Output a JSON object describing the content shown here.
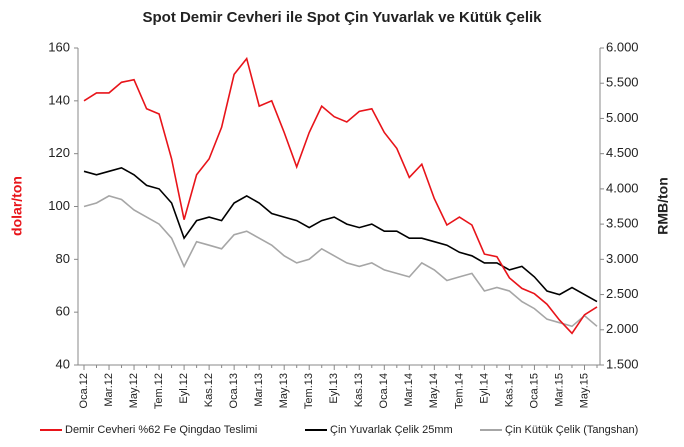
{
  "chart_data": {
    "type": "line",
    "title": "Spot Demir Cevheri ile Spot Çin Yuvarlak ve Kütük Çelik",
    "ylabel": "dolar/ton",
    "y2label": "RMB/ton",
    "categories": [
      "Oca.12",
      null,
      "Mar.12",
      null,
      "May.12",
      null,
      "Tem.12",
      null,
      "Eyl.12",
      null,
      "Kas.12",
      null,
      "Oca.13",
      null,
      "Mar.13",
      null,
      "May.13",
      null,
      "Tem.13",
      null,
      "Eyl.13",
      null,
      "Kas.13",
      null,
      "Oca.14",
      null,
      "Mar.14",
      null,
      "May.14",
      null,
      "Tem.14",
      null,
      "Eyl.14",
      null,
      "Kas.14",
      null,
      "Oca.15",
      null,
      "Mar.15",
      null,
      "May.15",
      null
    ],
    "series": [
      {
        "name": "Demir Cevheri %62 Fe Qingdao Teslimi",
        "color": "#e8141a",
        "axis": "y",
        "values": [
          140,
          143,
          143,
          147,
          148,
          137,
          135,
          118,
          95,
          112,
          118,
          130,
          150,
          156,
          138,
          140,
          128,
          115,
          128,
          138,
          134,
          132,
          136,
          137,
          128,
          122,
          111,
          116,
          103,
          93,
          96,
          93,
          82,
          81,
          73,
          69,
          67,
          63,
          57,
          52,
          59,
          62
        ]
      },
      {
        "name": "Çin Yuvarlak Çelik 25mm",
        "color": "#000000",
        "axis": "y2",
        "values": [
          4250,
          4200,
          4250,
          4300,
          4200,
          4050,
          4000,
          3800,
          3300,
          3550,
          3600,
          3550,
          3800,
          3900,
          3800,
          3650,
          3600,
          3550,
          3450,
          3550,
          3600,
          3500,
          3450,
          3500,
          3400,
          3400,
          3300,
          3300,
          3250,
          3200,
          3100,
          3050,
          2950,
          2950,
          2850,
          2900,
          2750,
          2550,
          2500,
          2600,
          2500,
          2400
        ]
      },
      {
        "name": "Çin Kütük Çelik (Tangshan)",
        "color": "#a6a6a6",
        "axis": "y2",
        "values": [
          3750,
          3800,
          3900,
          3850,
          3700,
          3600,
          3500,
          3300,
          2900,
          3250,
          3200,
          3150,
          3350,
          3400,
          3300,
          3200,
          3050,
          2950,
          3000,
          3150,
          3050,
          2950,
          2900,
          2950,
          2850,
          2800,
          2750,
          2950,
          2850,
          2700,
          2750,
          2800,
          2550,
          2600,
          2550,
          2400,
          2300,
          2150,
          2100,
          2050,
          2200,
          2050
        ]
      }
    ],
    "ylim": [
      40,
      160
    ],
    "yticks": [
      40,
      60,
      80,
      100,
      120,
      140,
      160
    ],
    "y2lim": [
      1500,
      6000
    ],
    "y2ticks": [
      {
        "value": 1500,
        "label": "1.500"
      },
      {
        "value": 2000,
        "label": "2.000"
      },
      {
        "value": 2500,
        "label": "2.500"
      },
      {
        "value": 3000,
        "label": "3.000"
      },
      {
        "value": 3500,
        "label": "3.500"
      },
      {
        "value": 4000,
        "label": "4.000"
      },
      {
        "value": 4500,
        "label": "4.500"
      },
      {
        "value": 5000,
        "label": "5.000"
      },
      {
        "value": 5500,
        "label": "5.500"
      },
      {
        "value": 6000,
        "label": "6.000"
      }
    ],
    "legend": "bottom"
  }
}
